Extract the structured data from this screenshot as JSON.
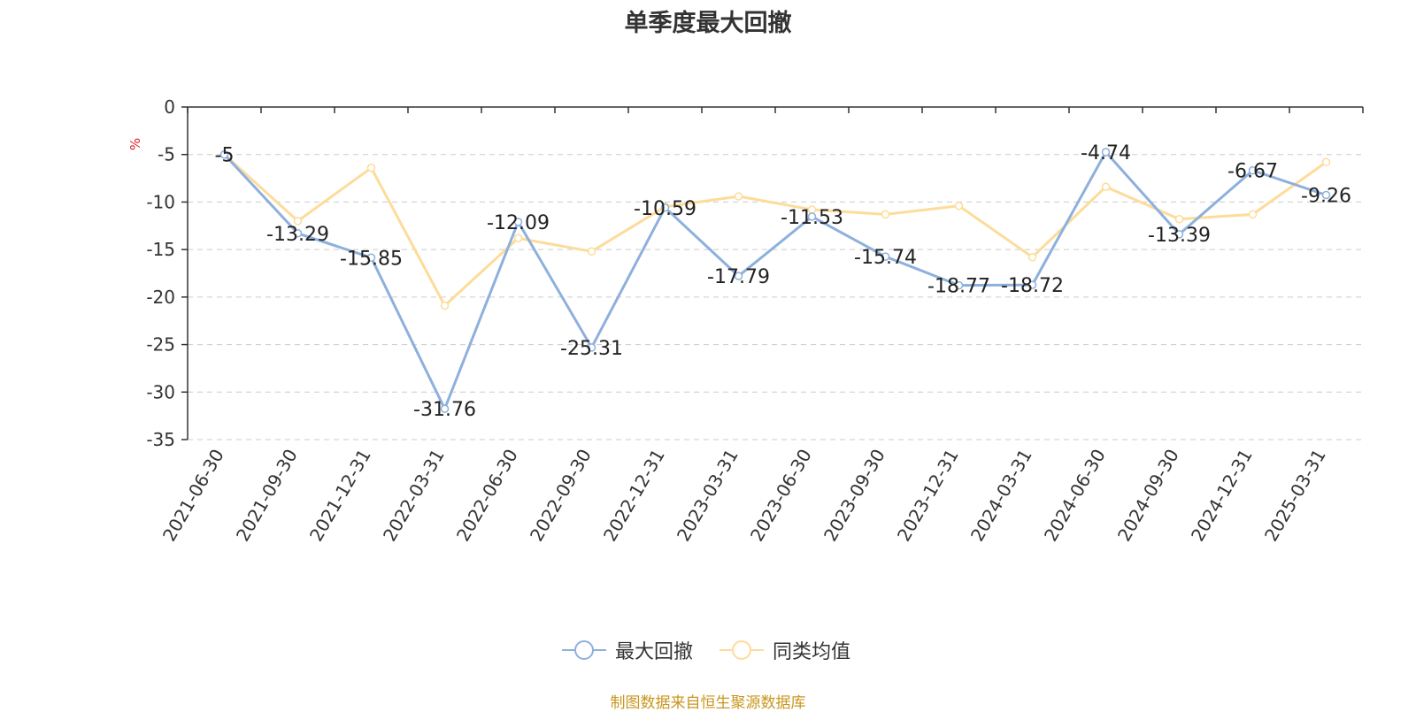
{
  "chart_data": {
    "type": "line",
    "title": "单季度最大回撤",
    "ylabel": "%",
    "ylim": [
      -35,
      0
    ],
    "yticks": [
      0,
      -5,
      -10,
      -15,
      -20,
      -25,
      -30,
      -35
    ],
    "categories": [
      "2021-06-30",
      "2021-09-30",
      "2021-12-31",
      "2022-03-31",
      "2022-06-30",
      "2022-09-30",
      "2022-12-31",
      "2023-03-31",
      "2023-06-30",
      "2023-09-30",
      "2023-12-31",
      "2024-03-31",
      "2024-06-30",
      "2024-09-30",
      "2024-12-31",
      "2025-03-31"
    ],
    "series": [
      {
        "name": "最大回撤",
        "color": "#8eb0dc",
        "show_labels": true,
        "values": [
          -5,
          -13.29,
          -15.85,
          -31.76,
          -12.09,
          -25.31,
          -10.59,
          -17.79,
          -11.53,
          -15.74,
          -18.77,
          -18.72,
          -4.74,
          -13.39,
          -6.67,
          -9.26
        ]
      },
      {
        "name": "同类均值",
        "color": "#fddc9a",
        "show_labels": false,
        "values": [
          -5.0,
          -12.0,
          -6.4,
          -20.9,
          -13.8,
          -15.2,
          -10.5,
          -9.4,
          -10.8,
          -11.3,
          -10.4,
          -15.8,
          -8.4,
          -11.8,
          -11.3,
          -5.8
        ]
      }
    ],
    "grid": true,
    "legend_position": "bottom-center"
  },
  "source_note": "制图数据来自恒生聚源数据库"
}
